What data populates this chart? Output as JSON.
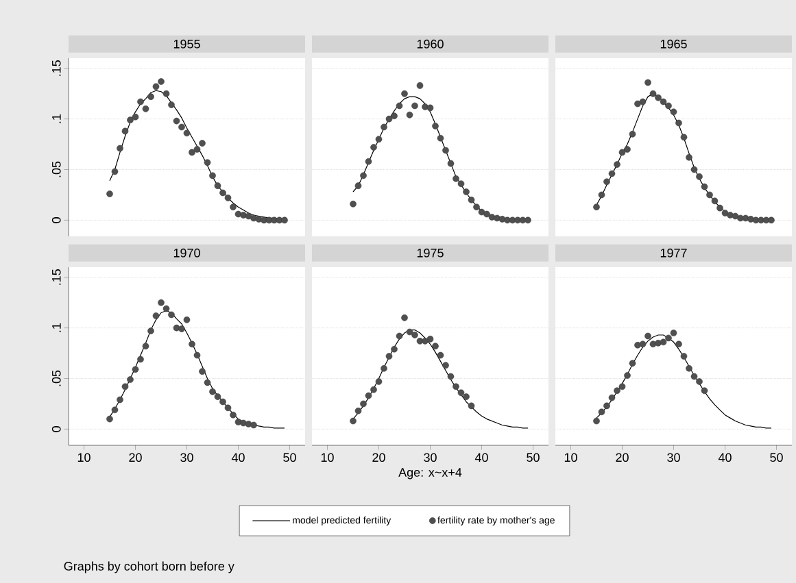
{
  "chart_data": [
    {
      "type": "line",
      "title": "1955",
      "x": [
        15,
        16,
        17,
        18,
        19,
        20,
        21,
        22,
        23,
        24,
        25,
        26,
        27,
        28,
        29,
        30,
        31,
        32,
        33,
        34,
        35,
        36,
        37,
        38,
        39,
        40,
        41,
        42,
        43,
        44,
        45,
        46,
        47,
        48,
        49
      ],
      "xlim": [
        7,
        53
      ],
      "ylim": [
        -0.016,
        0.16
      ],
      "yticks": [
        0,
        {
          "value": 0.05,
          "label": ".05"
        },
        {
          "value": 0.1,
          "label": ".1"
        },
        {
          "value": 0.15,
          "label": ".15"
        }
      ],
      "grid": "y",
      "tick_labels": "y",
      "legend": "bottom",
      "annotations": [
        "Graphs by cohort born before y"
      ],
      "series": [
        {
          "name": "model predicted fertility",
          "color": "#000000",
          "values": [
            0.039,
            0.05,
            0.067,
            0.083,
            0.097,
            0.107,
            0.115,
            0.12,
            0.126,
            0.128,
            0.127,
            0.123,
            0.116,
            0.109,
            0.101,
            0.091,
            0.082,
            0.073,
            0.064,
            0.054,
            0.043,
            0.034,
            0.028,
            0.022,
            0.017,
            0.013,
            0.01,
            0.007,
            0.005,
            0.004,
            0.003,
            0.002,
            0.002,
            0.001,
            0.001
          ]
        },
        {
          "name": "fertility rate by mother's age",
          "type": "scatter",
          "marker": "circle",
          "color": "#505050",
          "values": [
            0.026,
            0.048,
            0.071,
            0.088,
            0.099,
            0.102,
            0.117,
            0.11,
            0.122,
            0.132,
            0.137,
            0.125,
            0.114,
            0.098,
            0.092,
            0.086,
            0.067,
            0.07,
            0.076,
            0.057,
            0.044,
            0.034,
            0.027,
            0.022,
            0.013,
            0.006,
            0.005,
            0.004,
            0.002,
            0.001,
            0,
            0,
            0,
            0,
            0
          ]
        }
      ]
    },
    {
      "type": "line",
      "title": "1960",
      "x": [
        15,
        16,
        17,
        18,
        19,
        20,
        21,
        22,
        23,
        24,
        25,
        26,
        27,
        28,
        29,
        30,
        31,
        32,
        33,
        34,
        35,
        36,
        37,
        38,
        39,
        40,
        41,
        42,
        43,
        44,
        45,
        46,
        47,
        48,
        49
      ],
      "xlim": [
        7,
        53
      ],
      "ylim": [
        -0.016,
        0.16
      ],
      "yticks": [
        0,
        0.05,
        0.1,
        0.15
      ],
      "grid": "y",
      "tick_labels": false,
      "series": [
        {
          "color": "#000000",
          "values": [
            0.028,
            0.034,
            0.045,
            0.057,
            0.069,
            0.08,
            0.091,
            0.1,
            0.108,
            0.115,
            0.12,
            0.122,
            0.122,
            0.12,
            0.115,
            0.107,
            0.095,
            0.082,
            0.069,
            0.056,
            0.043,
            0.035,
            0.027,
            0.02,
            0.014,
            0.009,
            0.006,
            0.004,
            0.003,
            0.002,
            0.001,
            0.001,
            0.001,
            0.001,
            0.001
          ]
        },
        {
          "type": "scatter",
          "marker": "circle",
          "color": "#505050",
          "values": [
            0.016,
            0.034,
            0.044,
            0.058,
            0.072,
            0.08,
            0.092,
            0.1,
            0.103,
            0.113,
            0.125,
            0.104,
            0.113,
            0.133,
            0.112,
            0.111,
            0.093,
            0.081,
            0.069,
            0.056,
            0.041,
            0.036,
            0.028,
            0.02,
            0.013,
            0.008,
            0.006,
            0.003,
            0.002,
            0.001,
            0,
            0,
            0,
            0,
            0
          ]
        }
      ]
    },
    {
      "type": "line",
      "title": "1965",
      "x": [
        15,
        16,
        17,
        18,
        19,
        20,
        21,
        22,
        23,
        24,
        25,
        26,
        27,
        28,
        29,
        30,
        31,
        32,
        33,
        34,
        35,
        36,
        37,
        38,
        39,
        40,
        41,
        42,
        43,
        44,
        45,
        46,
        47,
        48,
        49
      ],
      "xlim": [
        7,
        53
      ],
      "ylim": [
        -0.016,
        0.16
      ],
      "yticks": [
        0,
        0.05,
        0.1,
        0.15
      ],
      "grid": "y",
      "tick_labels": false,
      "series": [
        {
          "color": "#000000",
          "values": [
            0.015,
            0.024,
            0.035,
            0.045,
            0.055,
            0.066,
            0.075,
            0.087,
            0.1,
            0.113,
            0.122,
            0.125,
            0.122,
            0.117,
            0.111,
            0.104,
            0.094,
            0.081,
            0.066,
            0.052,
            0.041,
            0.032,
            0.025,
            0.018,
            0.013,
            0.008,
            0.005,
            0.004,
            0.003,
            0.002,
            0.001,
            0.001,
            0.001,
            0,
            0
          ]
        },
        {
          "type": "scatter",
          "marker": "circle",
          "color": "#505050",
          "values": [
            0.013,
            0.025,
            0.038,
            0.046,
            0.055,
            0.067,
            0.07,
            0.085,
            0.115,
            0.117,
            0.136,
            0.125,
            0.121,
            0.117,
            0.113,
            0.107,
            0.096,
            0.082,
            0.062,
            0.05,
            0.043,
            0.033,
            0.025,
            0.019,
            0.012,
            0.007,
            0.005,
            0.004,
            0.002,
            0.002,
            0.001,
            0,
            0,
            0,
            0
          ]
        }
      ]
    },
    {
      "type": "line",
      "title": "1970",
      "x": [
        15,
        16,
        17,
        18,
        19,
        20,
        21,
        22,
        23,
        24,
        25,
        26,
        27,
        28,
        29,
        30,
        31,
        32,
        33,
        34,
        35,
        36,
        37,
        38,
        39,
        40,
        41,
        42,
        43,
        44,
        45,
        46,
        47,
        48,
        49
      ],
      "xlim": [
        7,
        53
      ],
      "xticks": [
        10,
        20,
        30,
        40,
        50
      ],
      "ylim": [
        -0.016,
        0.16
      ],
      "yticks": [
        0,
        {
          "value": 0.05,
          "label": ".05"
        },
        {
          "value": 0.1,
          "label": ".1"
        },
        {
          "value": 0.15,
          "label": ".15"
        }
      ],
      "grid": "y",
      "series": [
        {
          "color": "#000000",
          "values": [
            0.012,
            0.02,
            0.029,
            0.039,
            0.05,
            0.061,
            0.073,
            0.085,
            0.098,
            0.108,
            0.115,
            0.117,
            0.115,
            0.109,
            0.104,
            0.095,
            0.085,
            0.074,
            0.062,
            0.05,
            0.04,
            0.033,
            0.027,
            0.021,
            0.015,
            0.01,
            0.007,
            0.005,
            0.004,
            0.003,
            0.002,
            0.002,
            0.001,
            0.001,
            0.001
          ]
        },
        {
          "type": "scatter",
          "marker": "circle",
          "color": "#505050",
          "values": [
            0.01,
            0.019,
            0.029,
            0.042,
            0.049,
            0.059,
            0.069,
            0.082,
            0.097,
            0.112,
            0.125,
            0.119,
            0.113,
            0.1,
            0.099,
            0.108,
            0.084,
            0.073,
            0.057,
            0.046,
            0.037,
            0.032,
            0.027,
            0.021,
            0.014,
            0.007,
            0.006,
            0.005,
            0.004,
            null,
            null,
            null,
            null,
            null,
            null
          ]
        }
      ]
    },
    {
      "type": "line",
      "title": "1975",
      "xlabel": "Age: x~x+4",
      "x": [
        15,
        16,
        17,
        18,
        19,
        20,
        21,
        22,
        23,
        24,
        25,
        26,
        27,
        28,
        29,
        30,
        31,
        32,
        33,
        34,
        35,
        36,
        37,
        38,
        39,
        40,
        41,
        42,
        43,
        44,
        45,
        46,
        47,
        48,
        49
      ],
      "xlim": [
        7,
        53
      ],
      "xticks": [
        10,
        20,
        30,
        40,
        50
      ],
      "ylim": [
        -0.016,
        0.16
      ],
      "yticks": [
        0,
        0.05,
        0.1,
        0.15
      ],
      "grid": "y",
      "tick_labels": "x",
      "series": [
        {
          "color": "#000000",
          "values": [
            0.01,
            0.016,
            0.023,
            0.031,
            0.04,
            0.05,
            0.061,
            0.071,
            0.081,
            0.089,
            0.095,
            0.098,
            0.098,
            0.095,
            0.09,
            0.084,
            0.076,
            0.067,
            0.058,
            0.049,
            0.041,
            0.034,
            0.027,
            0.022,
            0.017,
            0.013,
            0.01,
            0.008,
            0.006,
            0.004,
            0.003,
            0.002,
            0.002,
            0.001,
            0.001
          ]
        },
        {
          "type": "scatter",
          "marker": "circle",
          "color": "#505050",
          "values": [
            0.008,
            0.018,
            0.025,
            0.033,
            0.039,
            0.047,
            0.06,
            0.072,
            0.079,
            0.092,
            0.11,
            0.096,
            0.093,
            0.087,
            0.087,
            0.089,
            0.082,
            0.073,
            0.063,
            0.052,
            0.042,
            0.036,
            0.032,
            0.023,
            null,
            null,
            null,
            null,
            null,
            null,
            null,
            null,
            null,
            null,
            null
          ]
        }
      ]
    },
    {
      "type": "line",
      "title": "1977",
      "x": [
        15,
        16,
        17,
        18,
        19,
        20,
        21,
        22,
        23,
        24,
        25,
        26,
        27,
        28,
        29,
        30,
        31,
        32,
        33,
        34,
        35,
        36,
        37,
        38,
        39,
        40,
        41,
        42,
        43,
        44,
        45,
        46,
        47,
        48,
        49
      ],
      "xlim": [
        7,
        53
      ],
      "xticks": [
        10,
        20,
        30,
        40,
        50
      ],
      "ylim": [
        -0.016,
        0.16
      ],
      "yticks": [
        0,
        0.05,
        0.1,
        0.15
      ],
      "grid": "y",
      "tick_labels": "x",
      "series": [
        {
          "color": "#000000",
          "values": [
            0.011,
            0.016,
            0.022,
            0.029,
            0.037,
            0.045,
            0.054,
            0.064,
            0.073,
            0.081,
            0.087,
            0.091,
            0.093,
            0.093,
            0.09,
            0.086,
            0.079,
            0.071,
            0.062,
            0.053,
            0.045,
            0.037,
            0.03,
            0.024,
            0.019,
            0.014,
            0.011,
            0.008,
            0.006,
            0.004,
            0.003,
            0.002,
            0.002,
            0.001,
            0.001
          ]
        },
        {
          "type": "scatter",
          "marker": "circle",
          "color": "#505050",
          "values": [
            0.008,
            0.017,
            0.023,
            0.031,
            0.038,
            0.042,
            0.053,
            0.065,
            0.083,
            0.084,
            0.092,
            0.084,
            0.085,
            0.086,
            0.09,
            0.095,
            0.084,
            0.072,
            0.06,
            0.052,
            0.047,
            0.038,
            null,
            null,
            null,
            null,
            null,
            null,
            null,
            null,
            null,
            null,
            null,
            null,
            null
          ]
        }
      ]
    }
  ]
}
